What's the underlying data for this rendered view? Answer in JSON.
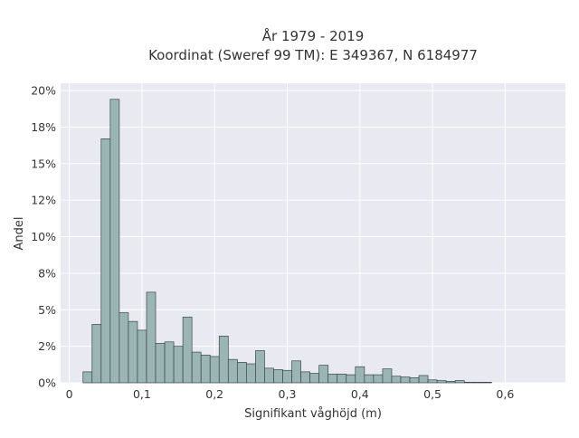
{
  "chart_data": {
    "type": "bar",
    "title": [
      "År 1979 - 2019",
      "Koordinat (Sweref 99 TM): E 349367, N 6184977"
    ],
    "xlabel": "Signifikant våghöjd (m)",
    "ylabel": "Andel",
    "xlim": [
      -0.012,
      0.683
    ],
    "ylim": [
      0,
      0.205
    ],
    "x_ticks": [
      {
        "value": 0,
        "label": "0"
      },
      {
        "value": 0.1,
        "label": "0,1"
      },
      {
        "value": 0.2,
        "label": "0,2"
      },
      {
        "value": 0.3,
        "label": "0,3"
      },
      {
        "value": 0.4,
        "label": "0,4"
      },
      {
        "value": 0.5,
        "label": "0,5"
      },
      {
        "value": 0.6,
        "label": "0,6"
      }
    ],
    "y_ticks": [
      {
        "value": 0,
        "label": "0%"
      },
      {
        "value": 0.025,
        "label": "2%"
      },
      {
        "value": 0.05,
        "label": "5%"
      },
      {
        "value": 0.075,
        "label": "8%"
      },
      {
        "value": 0.1,
        "label": "10%"
      },
      {
        "value": 0.125,
        "label": "12%"
      },
      {
        "value": 0.15,
        "label": "15%"
      },
      {
        "value": 0.175,
        "label": "18%"
      },
      {
        "value": 0.2,
        "label": "20%"
      }
    ],
    "bin_width": 0.0125,
    "bin_start": 0.0188,
    "values": [
      0.0075,
      0.04,
      0.167,
      0.194,
      0.048,
      0.042,
      0.036,
      0.062,
      0.027,
      0.028,
      0.025,
      0.045,
      0.021,
      0.019,
      0.018,
      0.032,
      0.016,
      0.014,
      0.013,
      0.022,
      0.01,
      0.009,
      0.0085,
      0.015,
      0.0075,
      0.0065,
      0.012,
      0.006,
      0.006,
      0.0055,
      0.011,
      0.0055,
      0.0055,
      0.0095,
      0.0045,
      0.004,
      0.0035,
      0.005,
      0.002,
      0.0015,
      0.001,
      0.0015,
      0.0004,
      0.0004,
      0.0004
    ],
    "grid": true,
    "colors": {
      "bar_fill": "#9bb5b5",
      "bar_edge": "#3a4848",
      "plot_bg": "#e9e9f1",
      "grid": "#ffffff"
    }
  }
}
